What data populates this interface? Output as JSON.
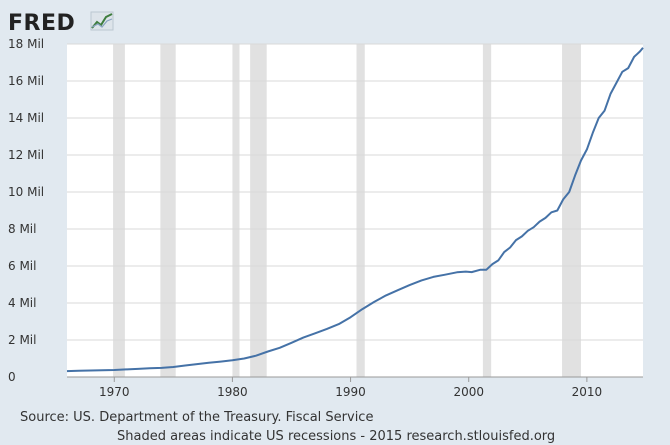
{
  "brand": {
    "logo_text": "FRED"
  },
  "footer": {
    "source": "Source: US. Department of the Treasury. Fiscal Service",
    "note": "Shaded areas indicate US recessions - 2015 research.stlouisfed.org"
  },
  "colors": {
    "background": "#e1e9f0",
    "plot_background": "#ffffff",
    "line": "#4572a7",
    "recession": "#e1e1e1",
    "grid": "#d9d9d9"
  },
  "chart_data": {
    "type": "line",
    "title": "",
    "xlabel": "",
    "ylabel": "",
    "xlim": [
      1966.0,
      2014.75
    ],
    "ylim": [
      0,
      18000000
    ],
    "grid": true,
    "y_ticks": [
      {
        "value": 0,
        "label": "0"
      },
      {
        "value": 2000000,
        "label": "2 Mil"
      },
      {
        "value": 4000000,
        "label": "4 Mil"
      },
      {
        "value": 6000000,
        "label": "6 Mil"
      },
      {
        "value": 8000000,
        "label": "8 Mil"
      },
      {
        "value": 10000000,
        "label": "10 Mil"
      },
      {
        "value": 12000000,
        "label": "12 Mil"
      },
      {
        "value": 14000000,
        "label": "14 Mil"
      },
      {
        "value": 16000000,
        "label": "16 Mil"
      },
      {
        "value": 18000000,
        "label": "18 Mil"
      }
    ],
    "x_ticks": [
      {
        "value": 1970,
        "label": "1970"
      },
      {
        "value": 1980,
        "label": "1980"
      },
      {
        "value": 1990,
        "label": "1990"
      },
      {
        "value": 2000,
        "label": "2000"
      },
      {
        "value": 2010,
        "label": "2010"
      }
    ],
    "recessions": [
      [
        1969.9,
        1970.9
      ],
      [
        1973.9,
        1975.2
      ],
      [
        1980.0,
        1980.6
      ],
      [
        1981.5,
        1982.9
      ],
      [
        1990.5,
        1991.2
      ],
      [
        2001.2,
        2001.9
      ],
      [
        2007.9,
        2009.5
      ]
    ],
    "series": [
      {
        "x": [
          1966.0,
          1967.0,
          1968.0,
          1969.0,
          1970.0,
          1971.0,
          1972.0,
          1973.0,
          1974.0,
          1975.0,
          1976.0,
          1977.0,
          1978.0,
          1979.0,
          1980.0,
          1981.0,
          1982.0,
          1983.0,
          1984.0,
          1985.0,
          1986.0,
          1987.0,
          1988.0,
          1989.0,
          1990.0,
          1991.0,
          1992.0,
          1993.0,
          1994.0,
          1995.0,
          1996.0,
          1997.0,
          1998.0,
          1999.0,
          1999.75,
          2000.25,
          2001.0,
          2001.5,
          2002.0,
          2002.5,
          2003.0,
          2003.5,
          2004.0,
          2004.5,
          2005.0,
          2005.5,
          2006.0,
          2006.5,
          2007.0,
          2007.5,
          2008.0,
          2008.5,
          2009.0,
          2009.5,
          2010.0,
          2010.5,
          2011.0,
          2011.5,
          2012.0,
          2012.5,
          2013.0,
          2013.5,
          2014.0,
          2014.5,
          2014.75
        ],
        "y": [
          320000,
          340000,
          350000,
          365000,
          380000,
          410000,
          440000,
          470000,
          490000,
          540000,
          620000,
          700000,
          770000,
          830000,
          910000,
          1000000,
          1150000,
          1380000,
          1580000,
          1850000,
          2130000,
          2360000,
          2600000,
          2860000,
          3230000,
          3670000,
          4060000,
          4410000,
          4690000,
          4970000,
          5220000,
          5410000,
          5530000,
          5660000,
          5700000,
          5670000,
          5800000,
          5800000,
          6100000,
          6300000,
          6750000,
          7000000,
          7400000,
          7600000,
          7900000,
          8100000,
          8400000,
          8600000,
          8900000,
          9000000,
          9600000,
          10000000,
          10900000,
          11700000,
          12300000,
          13200000,
          14000000,
          14400000,
          15300000,
          15900000,
          16500000,
          16700000,
          17300000,
          17600000,
          17800000
        ]
      }
    ]
  }
}
